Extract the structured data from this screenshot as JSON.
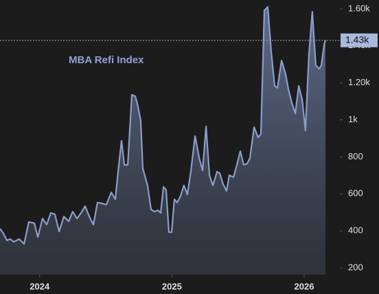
{
  "chart_data": {
    "type": "area",
    "title": "MBA Refi Index",
    "color": "#8b9dc9",
    "x": [
      2023.7,
      2023.726,
      2023.752,
      2023.778,
      2023.804,
      2023.845,
      2023.882,
      2023.918,
      2023.96,
      2023.986,
      2024.022,
      2024.053,
      2024.084,
      2024.115,
      2024.147,
      2024.183,
      2024.219,
      2024.25,
      2024.282,
      2024.313,
      2024.344,
      2024.375,
      2024.406,
      2024.437,
      2024.468,
      2024.505,
      2024.541,
      2024.572,
      2024.593,
      2024.619,
      2024.64,
      2024.666,
      2024.697,
      2024.723,
      2024.738,
      2024.764,
      2024.78,
      2024.801,
      2024.816,
      2024.842,
      2024.868,
      2024.894,
      2024.915,
      2024.936,
      2024.956,
      2024.977,
      2024.998,
      2025.019,
      2025.04,
      2025.066,
      2025.091,
      2025.117,
      2025.143,
      2025.175,
      2025.206,
      2025.232,
      2025.258,
      2025.284,
      2025.31,
      2025.341,
      2025.361,
      2025.387,
      2025.413,
      2025.434,
      2025.465,
      2025.491,
      2025.517,
      2025.543,
      2025.569,
      2025.59,
      2025.621,
      2025.652,
      2025.673,
      2025.699,
      2025.725,
      2025.751,
      2025.777,
      2025.798,
      2025.829,
      2025.86,
      2025.881,
      2025.907,
      2025.933,
      2025.959,
      2025.985,
      2026.01,
      2026.036,
      2026.062,
      2026.088,
      2026.114,
      2026.13,
      2026.151,
      2026.161
    ],
    "values": [
      412,
      386,
      349,
      356,
      341,
      356,
      330,
      449,
      441,
      367,
      467,
      434,
      497,
      490,
      397,
      478,
      452,
      504,
      467,
      497,
      534,
      478,
      434,
      553,
      549,
      542,
      608,
      571,
      720,
      887,
      757,
      757,
      1136,
      1128,
      1091,
      998,
      738,
      683,
      646,
      516,
      504,
      512,
      497,
      638,
      623,
      393,
      393,
      571,
      553,
      590,
      646,
      597,
      720,
      913,
      794,
      727,
      965,
      701,
      646,
      720,
      712,
      653,
      616,
      701,
      690,
      757,
      831,
      757,
      764,
      794,
      961,
      905,
      924,
      1592,
      1611,
      1370,
      1184,
      1173,
      1321,
      1247,
      1165,
      1091,
      1035,
      1184,
      1110,
      943,
      1351,
      1585,
      1295,
      1277,
      1295,
      1407,
      1430
    ],
    "value_labels": [
      null,
      null,
      null,
      null,
      null,
      null,
      null,
      null,
      null,
      null,
      null,
      null,
      null,
      null,
      null,
      null,
      null,
      null,
      null,
      null,
      null,
      null,
      null,
      null,
      null,
      null,
      null,
      null,
      null,
      null,
      null,
      null,
      null,
      null,
      null,
      null,
      null,
      null,
      null,
      null,
      null,
      null,
      null,
      null,
      null,
      null,
      null,
      null,
      null,
      null,
      null,
      null,
      null,
      null,
      null,
      null,
      null,
      null,
      null,
      null,
      null,
      null,
      null,
      null,
      null,
      null,
      null,
      null,
      null,
      null,
      null,
      null,
      null,
      null,
      null,
      null,
      null,
      null,
      null,
      null,
      null,
      null,
      null,
      null,
      null,
      null,
      null,
      null,
      null,
      null,
      null,
      null,
      "1.43k"
    ],
    "xlim": [
      2023.7,
      2026.27
    ],
    "xticks": [
      2024,
      2025,
      2026
    ],
    "ylim": [
      163,
      1648
    ],
    "yticks": [
      200,
      400,
      600,
      800,
      {
        "value": 1000,
        "label": "1k"
      },
      {
        "value": 1200,
        "label": "1.20k"
      },
      {
        "value": 1400,
        "label": "1.40k"
      },
      {
        "value": 1600,
        "label": "1.60k"
      }
    ]
  }
}
